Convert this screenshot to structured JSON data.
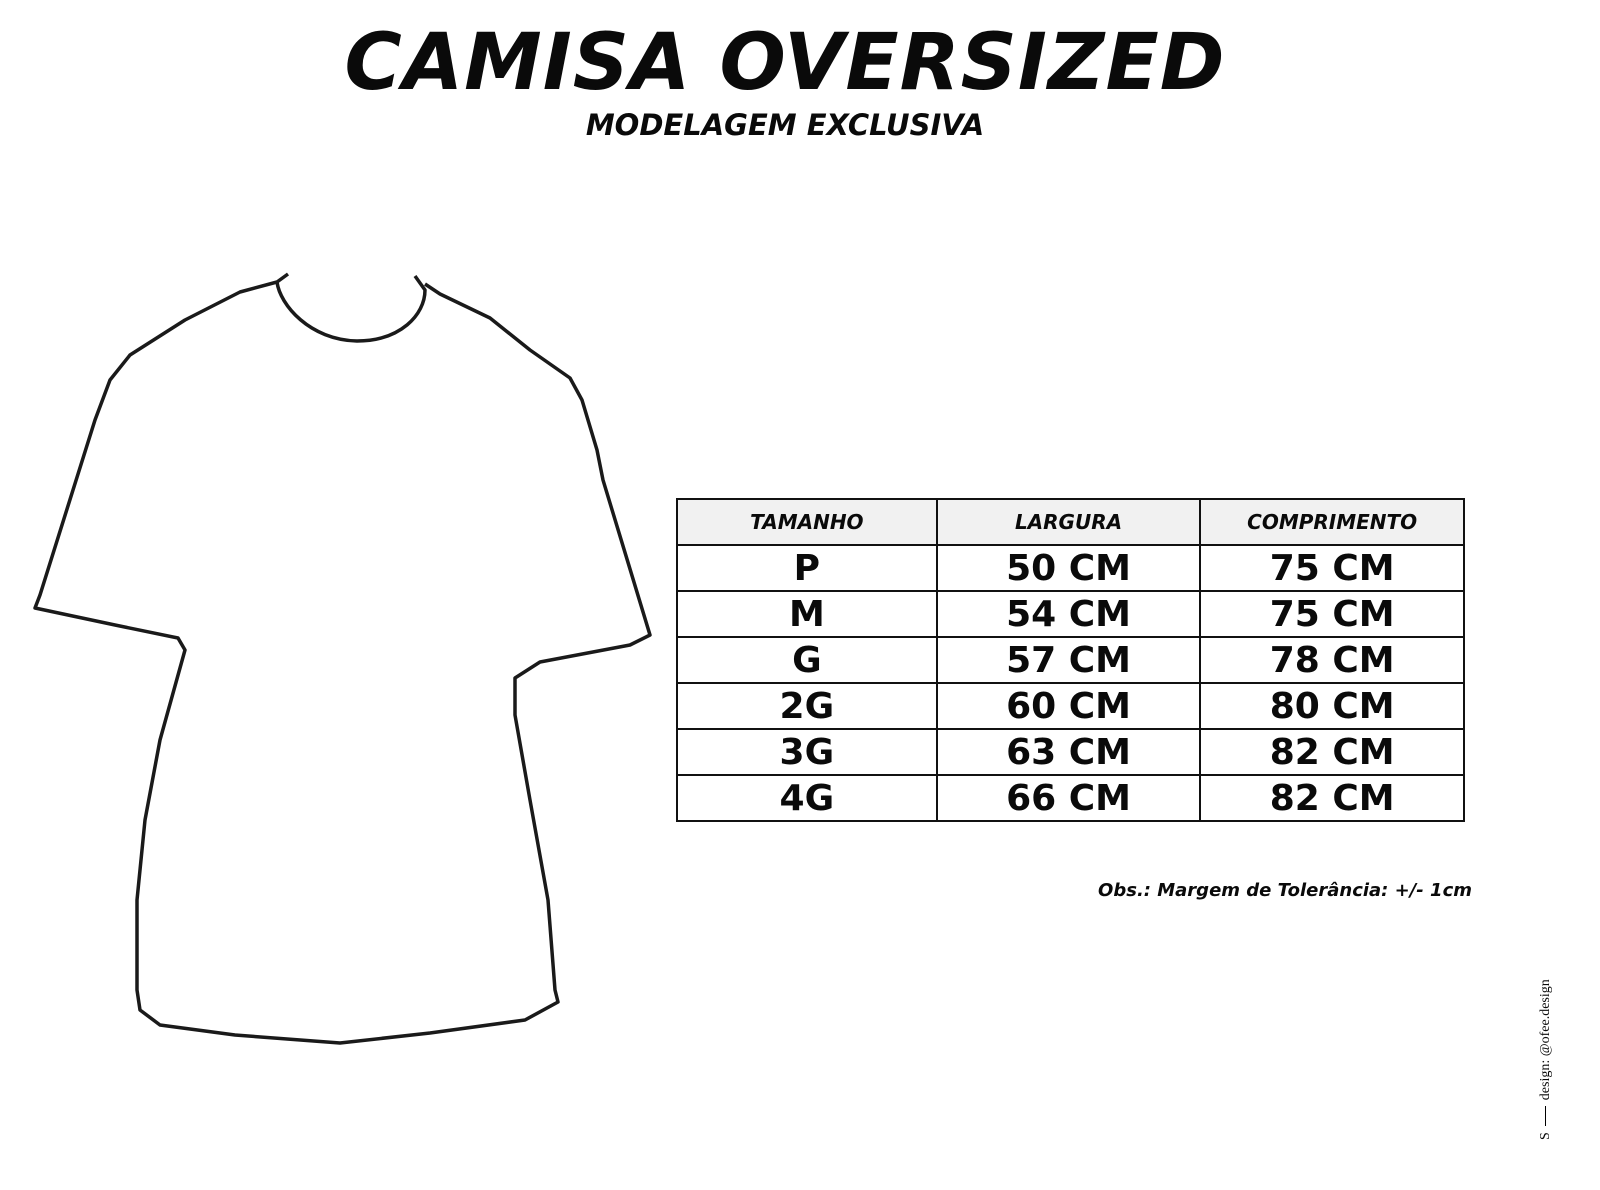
{
  "title": "CAMISA OVERSIZED",
  "subtitle": "MODELAGEM EXCLUSIVA",
  "table": {
    "headers": [
      "TAMANHO",
      "LARGURA",
      "COMPRIMENTO"
    ],
    "rows": [
      [
        "P",
        "50 CM",
        "75 CM"
      ],
      [
        "M",
        "54 CM",
        "75 CM"
      ],
      [
        "G",
        "57 CM",
        "78 CM"
      ],
      [
        "2G",
        "60 CM",
        "80 CM"
      ],
      [
        "3G",
        "63 CM",
        "82 CM"
      ],
      [
        "4G",
        "66 CM",
        "82 CM"
      ]
    ]
  },
  "note": "Obs.: Margem de Tolerância: +/- 1cm",
  "credit": {
    "letter": "S",
    "text": "design: @ofee.design"
  }
}
